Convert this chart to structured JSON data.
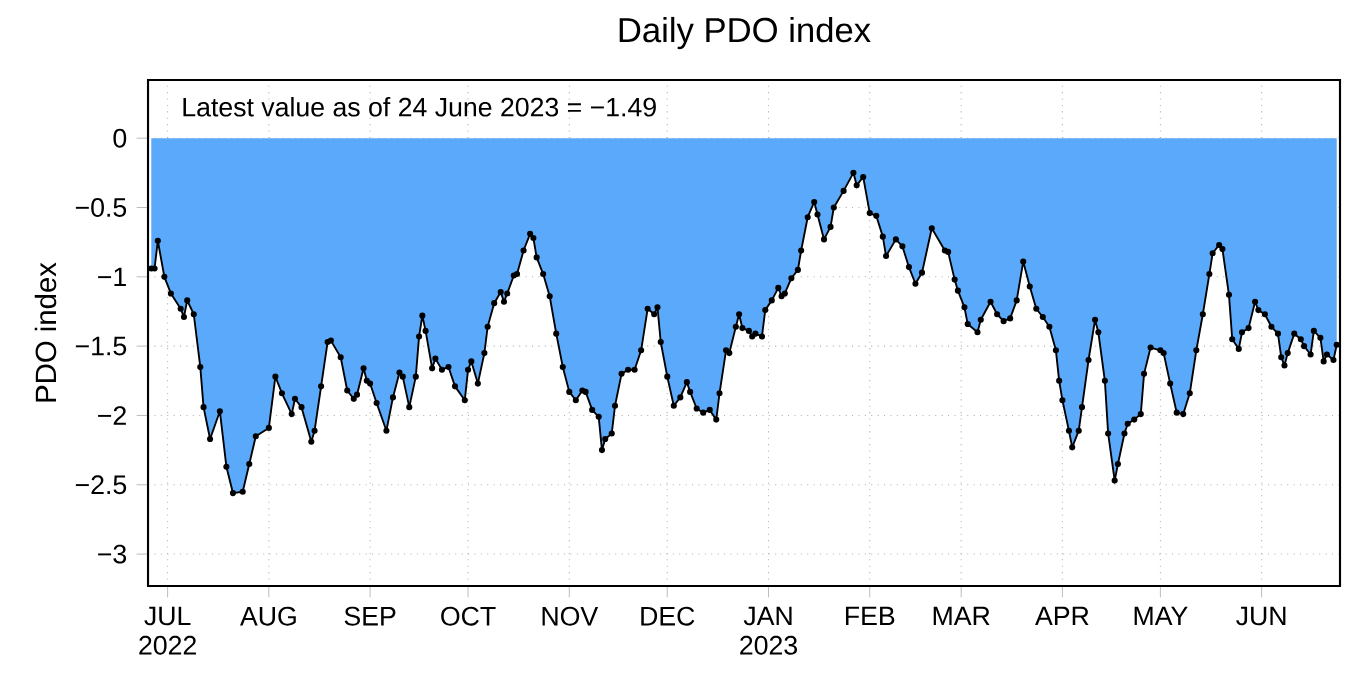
{
  "chart_data": {
    "type": "area",
    "title": "Daily PDO index",
    "ylabel": "PDO index",
    "annotations": [
      "Latest value as of 24 June 2023 = −1.49"
    ],
    "x": [
      "2022-06-26",
      "2022-06-27",
      "2022-06-28",
      "2022-06-30",
      "2022-07-02",
      "2022-07-05",
      "2022-07-06",
      "2022-07-07",
      "2022-07-09",
      "2022-07-11",
      "2022-07-12",
      "2022-07-14",
      "2022-07-17",
      "2022-07-19",
      "2022-07-21",
      "2022-07-24",
      "2022-07-26",
      "2022-07-28",
      "2022-08-01",
      "2022-08-03",
      "2022-08-05",
      "2022-08-08",
      "2022-08-09",
      "2022-08-11",
      "2022-08-14",
      "2022-08-15",
      "2022-08-17",
      "2022-08-19",
      "2022-08-20",
      "2022-08-23",
      "2022-08-25",
      "2022-08-27",
      "2022-08-28",
      "2022-08-30",
      "2022-08-31",
      "2022-09-01",
      "2022-09-03",
      "2022-09-06",
      "2022-09-08",
      "2022-09-10",
      "2022-09-11",
      "2022-09-13",
      "2022-09-15",
      "2022-09-16",
      "2022-09-17",
      "2022-09-18",
      "2022-09-20",
      "2022-09-21",
      "2022-09-23",
      "2022-09-25",
      "2022-09-27",
      "2022-09-30",
      "2022-10-01",
      "2022-10-02",
      "2022-10-04",
      "2022-10-06",
      "2022-10-07",
      "2022-10-09",
      "2022-10-11",
      "2022-10-12",
      "2022-10-13",
      "2022-10-15",
      "2022-10-16",
      "2022-10-18",
      "2022-10-20",
      "2022-10-21",
      "2022-10-22",
      "2022-10-24",
      "2022-10-26",
      "2022-10-28",
      "2022-10-30",
      "2022-11-01",
      "2022-11-03",
      "2022-11-05",
      "2022-11-06",
      "2022-11-08",
      "2022-11-10",
      "2022-11-11",
      "2022-11-12",
      "2022-11-14",
      "2022-11-15",
      "2022-11-17",
      "2022-11-19",
      "2022-11-21",
      "2022-11-23",
      "2022-11-25",
      "2022-11-27",
      "2022-11-28",
      "2022-11-29",
      "2022-12-01",
      "2022-12-03",
      "2022-12-05",
      "2022-12-07",
      "2022-12-08",
      "2022-12-10",
      "2022-12-12",
      "2022-12-14",
      "2022-12-16",
      "2022-12-17",
      "2022-12-19",
      "2022-12-20",
      "2022-12-22",
      "2022-12-23",
      "2022-12-24",
      "2022-12-26",
      "2022-12-27",
      "2022-12-28",
      "2022-12-30",
      "2022-12-31",
      "2023-01-02",
      "2023-01-04",
      "2023-01-05",
      "2023-01-06",
      "2023-01-08",
      "2023-01-10",
      "2023-01-11",
      "2023-01-13",
      "2023-01-15",
      "2023-01-16",
      "2023-01-18",
      "2023-01-20",
      "2023-01-21",
      "2023-01-24",
      "2023-01-27",
      "2023-01-28",
      "2023-01-30",
      "2023-02-01",
      "2023-02-03",
      "2023-02-05",
      "2023-02-06",
      "2023-02-09",
      "2023-02-11",
      "2023-02-13",
      "2023-02-15",
      "2023-02-17",
      "2023-02-20",
      "2023-02-24",
      "2023-02-25",
      "2023-02-27",
      "2023-02-28",
      "2023-03-02",
      "2023-03-03",
      "2023-03-06",
      "2023-03-07",
      "2023-03-10",
      "2023-03-12",
      "2023-03-14",
      "2023-03-16",
      "2023-03-18",
      "2023-03-20",
      "2023-03-22",
      "2023-03-24",
      "2023-03-26",
      "2023-03-28",
      "2023-03-30",
      "2023-03-31",
      "2023-04-01",
      "2023-04-03",
      "2023-04-04",
      "2023-04-06",
      "2023-04-07",
      "2023-04-09",
      "2023-04-11",
      "2023-04-12",
      "2023-04-14",
      "2023-04-15",
      "2023-04-17",
      "2023-04-18",
      "2023-04-20",
      "2023-04-21",
      "2023-04-23",
      "2023-04-25",
      "2023-04-26",
      "2023-04-28",
      "2023-05-01",
      "2023-05-02",
      "2023-05-04",
      "2023-05-06",
      "2023-05-08",
      "2023-05-10",
      "2023-05-12",
      "2023-05-14",
      "2023-05-16",
      "2023-05-17",
      "2023-05-19",
      "2023-05-20",
      "2023-05-22",
      "2023-05-23",
      "2023-05-25",
      "2023-05-26",
      "2023-05-28",
      "2023-05-30",
      "2023-05-31",
      "2023-06-02",
      "2023-06-04",
      "2023-06-06",
      "2023-06-07",
      "2023-06-08",
      "2023-06-09",
      "2023-06-11",
      "2023-06-13",
      "2023-06-14",
      "2023-06-16",
      "2023-06-17",
      "2023-06-19",
      "2023-06-20",
      "2023-06-21",
      "2023-06-23",
      "2023-06-24"
    ],
    "values": [
      -0.94,
      -0.94,
      -0.74,
      -1.0,
      -1.12,
      -1.23,
      -1.29,
      -1.17,
      -1.27,
      -1.65,
      -1.94,
      -2.17,
      -1.97,
      -2.37,
      -2.56,
      -2.55,
      -2.35,
      -2.15,
      -2.09,
      -1.72,
      -1.84,
      -1.99,
      -1.88,
      -1.94,
      -2.19,
      -2.11,
      -1.79,
      -1.47,
      -1.46,
      -1.58,
      -1.82,
      -1.88,
      -1.85,
      -1.66,
      -1.75,
      -1.77,
      -1.91,
      -2.11,
      -1.87,
      -1.69,
      -1.72,
      -1.94,
      -1.72,
      -1.43,
      -1.28,
      -1.39,
      -1.66,
      -1.59,
      -1.67,
      -1.65,
      -1.79,
      -1.89,
      -1.67,
      -1.61,
      -1.77,
      -1.55,
      -1.36,
      -1.19,
      -1.11,
      -1.18,
      -1.12,
      -0.99,
      -0.98,
      -0.81,
      -0.69,
      -0.72,
      -0.86,
      -0.98,
      -1.14,
      -1.41,
      -1.65,
      -1.83,
      -1.89,
      -1.82,
      -1.83,
      -1.96,
      -2.01,
      -2.25,
      -2.17,
      -2.13,
      -1.93,
      -1.7,
      -1.67,
      -1.67,
      -1.53,
      -1.23,
      -1.27,
      -1.22,
      -1.47,
      -1.72,
      -1.93,
      -1.87,
      -1.76,
      -1.83,
      -1.95,
      -1.98,
      -1.96,
      -2.03,
      -1.84,
      -1.53,
      -1.55,
      -1.36,
      -1.27,
      -1.37,
      -1.39,
      -1.43,
      -1.41,
      -1.43,
      -1.24,
      -1.17,
      -1.08,
      -1.14,
      -1.12,
      -1.01,
      -0.95,
      -0.81,
      -0.57,
      -0.46,
      -0.55,
      -0.73,
      -0.64,
      -0.5,
      -0.38,
      -0.25,
      -0.34,
      -0.28,
      -0.54,
      -0.56,
      -0.71,
      -0.85,
      -0.73,
      -0.78,
      -0.93,
      -1.05,
      -0.97,
      -0.65,
      -0.81,
      -0.82,
      -1.02,
      -1.1,
      -1.22,
      -1.34,
      -1.4,
      -1.31,
      -1.18,
      -1.27,
      -1.32,
      -1.3,
      -1.17,
      -0.89,
      -1.07,
      -1.23,
      -1.29,
      -1.36,
      -1.53,
      -1.75,
      -1.89,
      -2.11,
      -2.23,
      -2.11,
      -1.94,
      -1.6,
      -1.31,
      -1.4,
      -1.75,
      -2.13,
      -2.47,
      -2.35,
      -2.13,
      -2.06,
      -2.03,
      -1.99,
      -1.7,
      -1.51,
      -1.53,
      -1.55,
      -1.77,
      -1.98,
      -1.99,
      -1.84,
      -1.53,
      -1.27,
      -0.98,
      -0.83,
      -0.77,
      -0.8,
      -1.13,
      -1.45,
      -1.52,
      -1.4,
      -1.37,
      -1.18,
      -1.24,
      -1.27,
      -1.36,
      -1.41,
      -1.58,
      -1.64,
      -1.55,
      -1.41,
      -1.45,
      -1.5,
      -1.56,
      -1.39,
      -1.44,
      -1.61,
      -1.56,
      -1.6,
      -1.49
    ],
    "color": "#5aa9fa",
    "marker": "circle",
    "grid": true,
    "xlim": [
      "2022-06-25",
      "2023-06-25"
    ],
    "ylim": [
      -3.23,
      0.42
    ],
    "xticks": [
      {
        "value": "2022-07-01",
        "label": "JUL 2022"
      },
      {
        "value": "2022-08-01",
        "label": "AUG"
      },
      {
        "value": "2022-09-01",
        "label": "SEP"
      },
      {
        "value": "2022-10-01",
        "label": "OCT"
      },
      {
        "value": "2022-11-01",
        "label": "NOV"
      },
      {
        "value": "2022-12-01",
        "label": "DEC"
      },
      {
        "value": "2023-01-01",
        "label": "JAN 2023"
      },
      {
        "value": "2023-02-01",
        "label": "FEB"
      },
      {
        "value": "2023-03-01",
        "label": "MAR"
      },
      {
        "value": "2023-04-01",
        "label": "APR"
      },
      {
        "value": "2023-05-01",
        "label": "MAY"
      },
      {
        "value": "2023-06-01",
        "label": "JUN"
      }
    ],
    "yticks": [
      0,
      {
        "value": -0.5,
        "label": "−0.5"
      },
      {
        "value": -1,
        "label": "−1"
      },
      {
        "value": -1.5,
        "label": "−1.5"
      },
      {
        "value": -2,
        "label": "−2"
      },
      {
        "value": -2.5,
        "label": "−2.5"
      },
      {
        "value": -3,
        "label": "−3"
      }
    ]
  }
}
